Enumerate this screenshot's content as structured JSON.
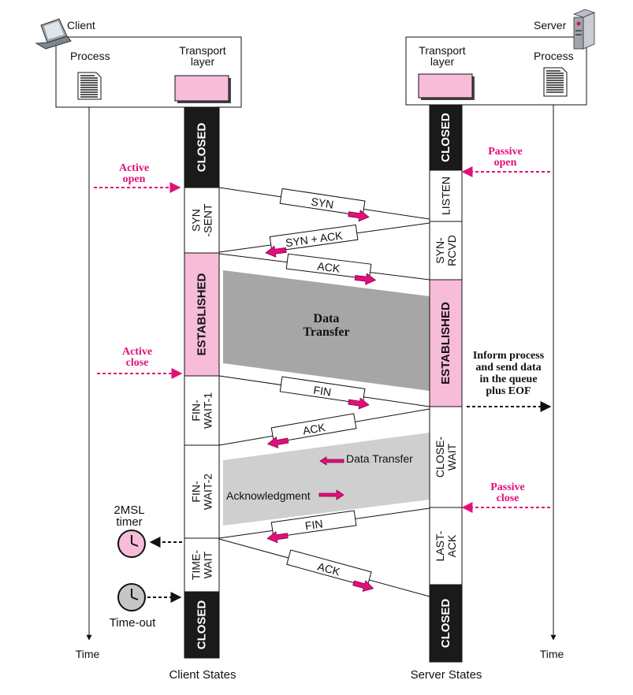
{
  "client": {
    "label": "Client",
    "process_label": "Process",
    "transport_label_line1": "Transport",
    "transport_label_line2": "layer",
    "time_label": "Time",
    "states_caption": "Client States"
  },
  "server": {
    "label": "Server",
    "process_label": "Process",
    "transport_label_line1": "Transport",
    "transport_label_line2": "layer",
    "time_label": "Time",
    "states_caption": "Server States"
  },
  "client_states": [
    {
      "id": "closed-top",
      "lines": [
        "CLOSED"
      ],
      "style": "dark"
    },
    {
      "id": "syn-sent",
      "lines": [
        "SYN",
        "-SENT"
      ],
      "style": "light"
    },
    {
      "id": "established",
      "lines": [
        "ESTABLISHED"
      ],
      "style": "pink"
    },
    {
      "id": "fin-wait-1",
      "lines": [
        "FIN-",
        "WAIT-1"
      ],
      "style": "light"
    },
    {
      "id": "fin-wait-2",
      "lines": [
        "FIN-",
        "WAIT-2"
      ],
      "style": "light"
    },
    {
      "id": "time-wait",
      "lines": [
        "TIME-",
        "WAIT"
      ],
      "style": "light"
    },
    {
      "id": "closed-bottom",
      "lines": [
        "CLOSED"
      ],
      "style": "dark"
    }
  ],
  "server_states": [
    {
      "id": "closed-top",
      "lines": [
        "CLOSED"
      ],
      "style": "dark"
    },
    {
      "id": "listen",
      "lines": [
        "LISTEN"
      ],
      "style": "light"
    },
    {
      "id": "syn-rcvd",
      "lines": [
        "SYN-",
        "RCVD"
      ],
      "style": "light"
    },
    {
      "id": "established",
      "lines": [
        "ESTABLISHED"
      ],
      "style": "pink"
    },
    {
      "id": "close-wait",
      "lines": [
        "CLOSE-",
        "WAIT"
      ],
      "style": "light"
    },
    {
      "id": "last-ack",
      "lines": [
        "LAST-",
        "ACK"
      ],
      "style": "light"
    },
    {
      "id": "closed-bottom",
      "lines": [
        "CLOSED"
      ],
      "style": "dark"
    }
  ],
  "segments": {
    "syn": "SYN",
    "syn_ack": "SYN + ACK",
    "ack1": "ACK",
    "fin1": "FIN",
    "ack2": "ACK",
    "fin2": "FIN",
    "ack3": "ACK"
  },
  "events": {
    "active_open_line1": "Active",
    "active_open_line2": "open",
    "passive_open_line1": "Passive",
    "passive_open_line2": "open",
    "active_close_line1": "Active",
    "active_close_line2": "close",
    "passive_close_line1": "Passive",
    "passive_close_line2": "close",
    "inform_line1": "Inform process",
    "inform_line2": "and send data",
    "inform_line3": "in the queue",
    "inform_line4": "plus EOF"
  },
  "transfer": {
    "data_transfer_line1": "Data",
    "data_transfer_line2": "Transfer",
    "half_data_transfer": "Data Transfer",
    "acknowledgment": "Acknowledgment"
  },
  "timers": {
    "msl_line1": "2MSL",
    "msl_line2": "timer",
    "timeout": "Time-out"
  },
  "colors": {
    "accent": "#e0107a",
    "pink_fill": "#f7bcd8",
    "dark_state": "#1a1a1a",
    "gray_transfer": "#a6a6a6",
    "light_transfer": "#cfcfcf"
  }
}
